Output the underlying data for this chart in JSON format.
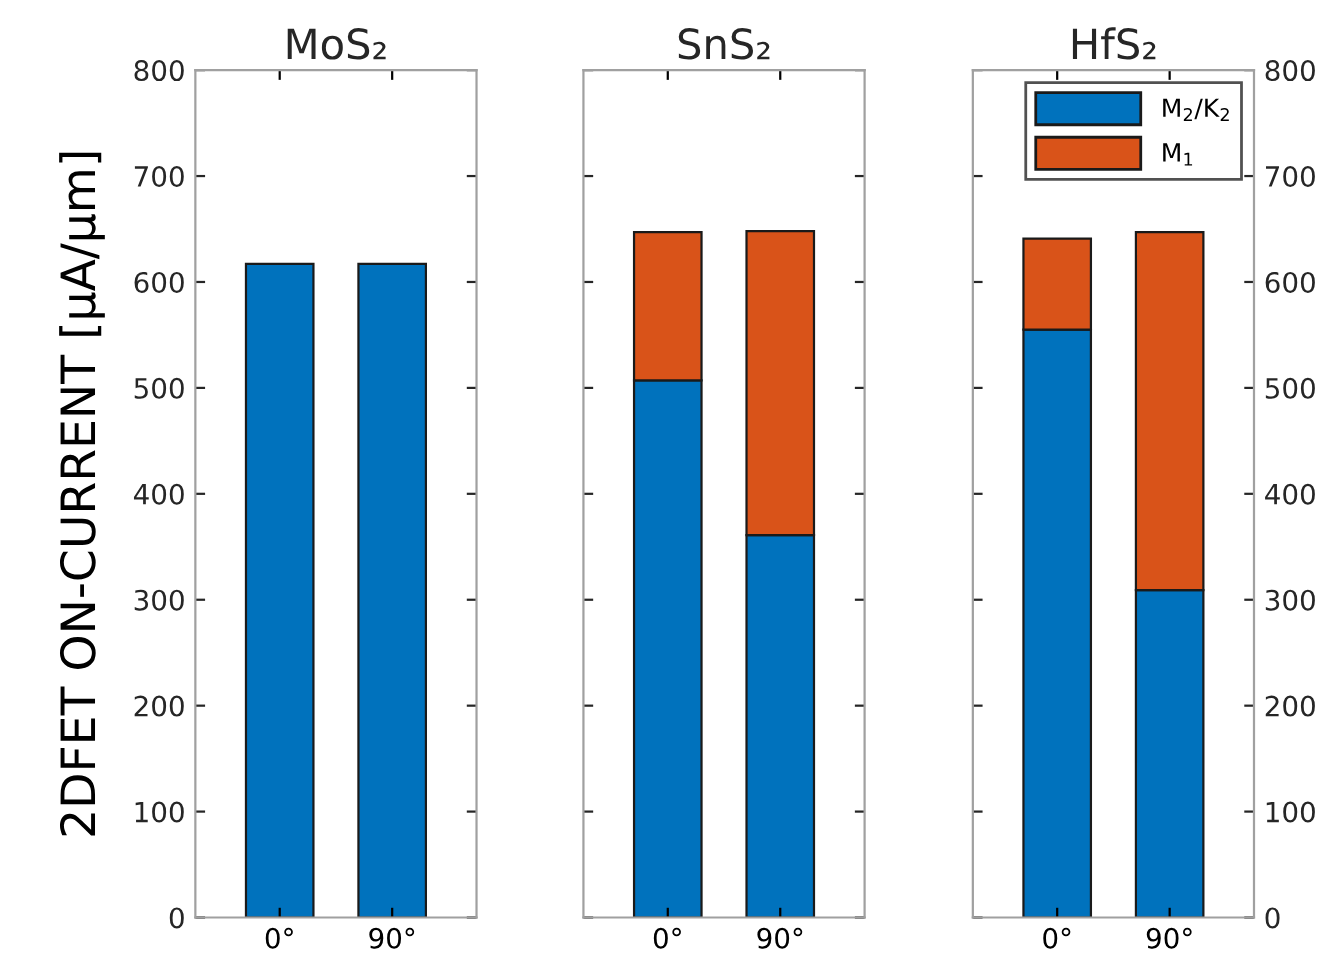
{
  "chart_data": [
    {
      "type": "bar",
      "title": "MoS₂",
      "ylabel": "2DFET ON-CURRENT [μA/μm]",
      "categories": [
        "0°",
        "90°"
      ],
      "stacked": true,
      "ylim": [
        0,
        800
      ],
      "yticks": [
        0,
        100,
        200,
        300,
        400,
        500,
        600,
        700,
        800
      ],
      "grid": false,
      "series": [
        {
          "color": "#0072bd",
          "values": [
            617,
            617
          ]
        }
      ]
    },
    {
      "type": "bar",
      "title": "SnS₂",
      "categories": [
        "0°",
        "90°"
      ],
      "stacked": true,
      "ylim": [
        0,
        800
      ],
      "yticks": [
        0,
        100,
        200,
        300,
        400,
        500,
        600,
        700,
        800
      ],
      "tick_labels": "x",
      "grid": false,
      "series": [
        {
          "color": "#0072bd",
          "values": [
            507,
            361
          ]
        },
        {
          "color": "#d95319",
          "values": [
            140,
            287
          ]
        }
      ]
    },
    {
      "type": "bar",
      "title": "HfS₂",
      "categories": [
        "0°",
        "90°"
      ],
      "stacked": true,
      "y2lim": [
        0,
        800
      ],
      "y2ticks": [
        0,
        100,
        200,
        300,
        400,
        500,
        600,
        700,
        800
      ],
      "grid": false,
      "legend": "top right",
      "series": [
        {
          "name": "M$_{2}$/K$_{2}$",
          "color": "#0072bd",
          "values": [
            555,
            309
          ],
          "axis": "y2"
        },
        {
          "name": "M$_{1}$",
          "color": "#d95319",
          "values": [
            86,
            338
          ],
          "axis": "y2"
        }
      ]
    }
  ]
}
